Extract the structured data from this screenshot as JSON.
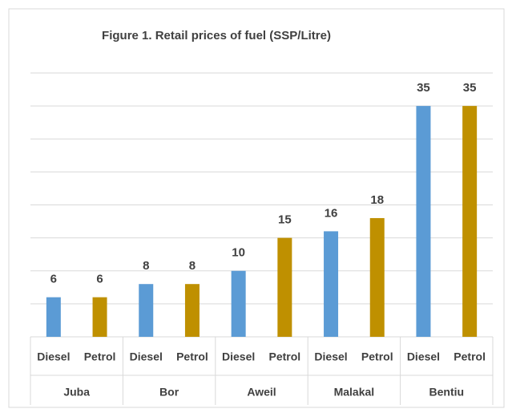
{
  "chart_data": {
    "type": "bar",
    "title": "Figure 1. Retail prices of fuel (SSP/Litre)",
    "categories": [
      "Juba",
      "Bor",
      "Aweil",
      "Malakal",
      "Bentiu"
    ],
    "series": [
      {
        "name": "Diesel",
        "color": "#5b9bd5",
        "values": [
          6,
          8,
          10,
          16,
          35
        ]
      },
      {
        "name": "Petrol",
        "color": "#bf9000",
        "values": [
          6,
          8,
          15,
          18,
          35
        ]
      }
    ],
    "ylim": [
      0,
      40
    ],
    "yticks": [
      0,
      5,
      10,
      15,
      20,
      25,
      30,
      35,
      40
    ],
    "grid": true
  }
}
